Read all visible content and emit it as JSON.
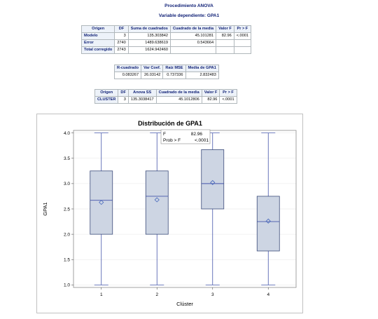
{
  "header": {
    "procedure_title": "Procedimiento ANOVA",
    "dependent_label": "Variable dependiente: GPA1"
  },
  "anova_table": {
    "columns": [
      "Origen",
      "DF",
      "Suma de cuadrados",
      "Cuadrado de la media",
      "Valor F",
      "Pr > F"
    ],
    "rows": [
      [
        "Modelo",
        "3",
        "135.303842",
        "45.101281",
        "82.96",
        "<.0001"
      ],
      [
        "Error",
        "2740",
        "1489.638619",
        "0.543664",
        "",
        ""
      ],
      [
        "Total corregido",
        "2743",
        "1624.942460",
        "",
        "",
        ""
      ]
    ]
  },
  "fit_table": {
    "columns": [
      "R-cuadrado",
      "Var Coef.",
      "Raíz MSE",
      "Media de GPA1"
    ],
    "row": [
      "0.083267",
      "26.03142",
      "0.737336",
      "2.832483"
    ]
  },
  "effect_table": {
    "columns": [
      "Origen",
      "DF",
      "Anova SS",
      "Cuadrado de la media",
      "Valor F",
      "Pr > F"
    ],
    "row": [
      "CLUSTER",
      "3",
      "135.3038417",
      "45.1012806",
      "82.96",
      "<.0001"
    ]
  },
  "chart_data": {
    "type": "box",
    "title": "Distribución de GPA1",
    "xlabel": "Clúster",
    "ylabel": "GPA1",
    "categories": [
      "1",
      "2",
      "3",
      "4"
    ],
    "ylim": [
      0.95,
      4.05
    ],
    "yticks": [
      "1.0",
      "1.5",
      "2.0",
      "2.5",
      "3.0",
      "3.5",
      "4.0"
    ],
    "grid": true,
    "boxes": [
      {
        "category": "1",
        "min": 1.0,
        "q1": 2.0,
        "median": 2.67,
        "q3": 3.25,
        "max": 4.0,
        "mean": 2.63
      },
      {
        "category": "2",
        "min": 1.0,
        "q1": 2.0,
        "median": 2.75,
        "q3": 3.25,
        "max": 4.0,
        "mean": 2.68
      },
      {
        "category": "3",
        "min": 1.0,
        "q1": 2.5,
        "median": 3.0,
        "q3": 3.67,
        "max": 4.0,
        "mean": 3.02
      },
      {
        "category": "4",
        "min": 1.0,
        "q1": 1.67,
        "median": 2.25,
        "q3": 2.75,
        "max": 4.0,
        "mean": 2.26
      }
    ],
    "inset": {
      "f_label": "F",
      "f_value": "82.96",
      "p_label": "Prob > F",
      "p_value": "<.0001"
    },
    "colors": {
      "box_fill": "#cdd5e3",
      "box_stroke": "#3a4a7a",
      "whisker": "#4455aa",
      "median": "#4455aa",
      "mean_marker": "#4466bb",
      "grid": "#e6e6e6"
    }
  }
}
